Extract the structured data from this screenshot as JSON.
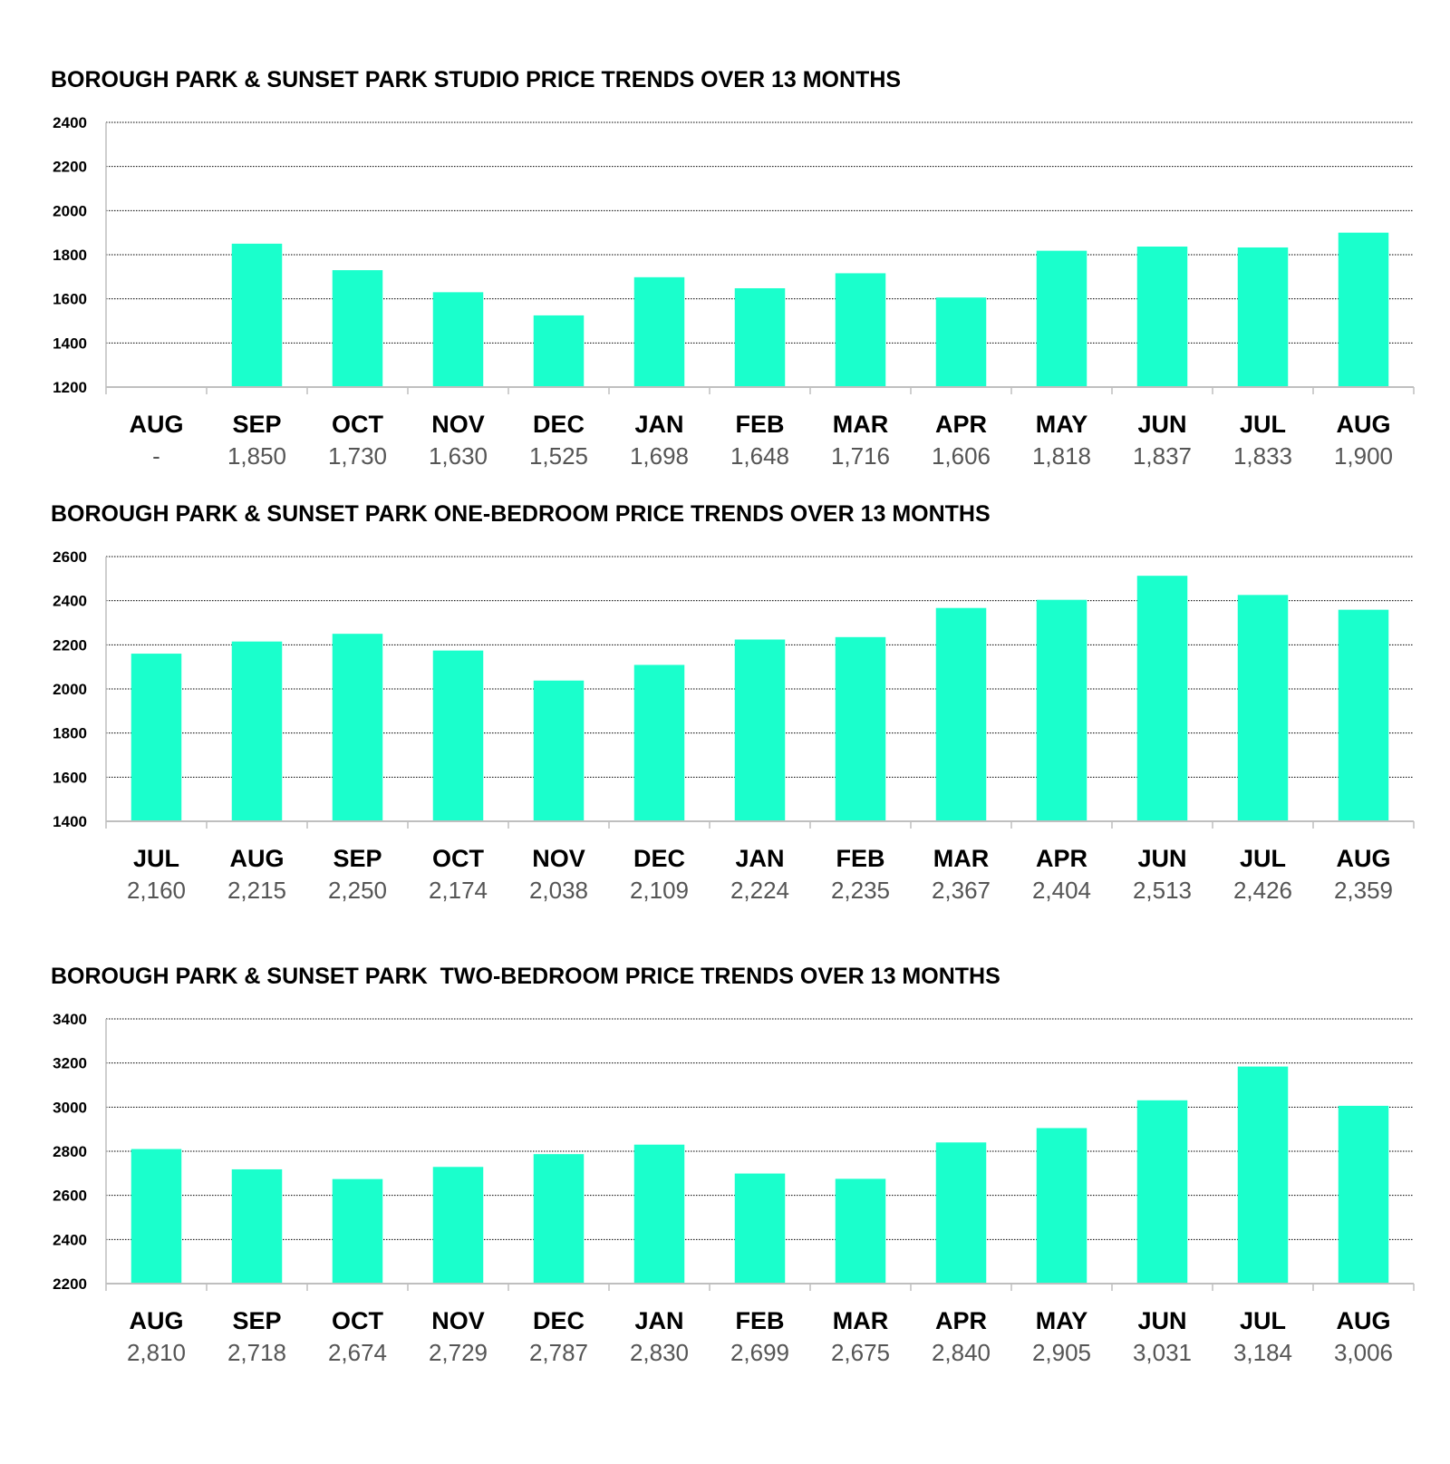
{
  "colors": {
    "bar": "#1affcc",
    "grid": "#000000",
    "axis": "#bfbfbf",
    "value_text": "#555555"
  },
  "chart_data": [
    {
      "type": "bar",
      "title": "BOROUGH PARK & SUNSET PARK STUDIO PRICE TRENDS OVER 13 MONTHS",
      "categories": [
        "AUG",
        "SEP",
        "OCT",
        "NOV",
        "DEC",
        "JAN",
        "FEB",
        "MAR",
        "APR",
        "MAY",
        "JUN",
        "JUL",
        "AUG"
      ],
      "values": [
        null,
        1850,
        1730,
        1630,
        1525,
        1698,
        1648,
        1716,
        1606,
        1818,
        1837,
        1833,
        1900
      ],
      "value_labels": [
        "-",
        "1,850",
        "1,730",
        "1,630",
        "1,525",
        "1,698",
        "1,648",
        "1,716",
        "1,606",
        "1,818",
        "1,837",
        "1,833",
        "1,900"
      ],
      "ylim": [
        1200,
        2400
      ],
      "yticks": [
        1200,
        1400,
        1600,
        1800,
        2000,
        2200,
        2400
      ],
      "grid": true
    },
    {
      "type": "bar",
      "title": "BOROUGH PARK & SUNSET PARK ONE-BEDROOM PRICE TRENDS OVER 13 MONTHS",
      "categories": [
        "JUL",
        "AUG",
        "SEP",
        "OCT",
        "NOV",
        "DEC",
        "JAN",
        "FEB",
        "MAR",
        "APR",
        "JUN",
        "JUL",
        "AUG"
      ],
      "values": [
        2160,
        2215,
        2250,
        2174,
        2038,
        2109,
        2224,
        2235,
        2367,
        2404,
        2513,
        2426,
        2359
      ],
      "value_labels": [
        "2,160",
        "2,215",
        "2,250",
        "2,174",
        "2,038",
        "2,109",
        "2,224",
        "2,235",
        "2,367",
        "2,404",
        "2,513",
        "2,426",
        "2,359"
      ],
      "ylim": [
        1400,
        2600
      ],
      "yticks": [
        1400,
        1600,
        1800,
        2000,
        2200,
        2400,
        2600
      ],
      "grid": true
    },
    {
      "type": "bar",
      "title": "BOROUGH PARK & SUNSET PARK  TWO-BEDROOM PRICE TRENDS OVER 13 MONTHS",
      "categories": [
        "AUG",
        "SEP",
        "OCT",
        "NOV",
        "DEC",
        "JAN",
        "FEB",
        "MAR",
        "APR",
        "MAY",
        "JUN",
        "JUL",
        "AUG"
      ],
      "values": [
        2810,
        2718,
        2674,
        2729,
        2787,
        2830,
        2699,
        2675,
        2840,
        2905,
        3031,
        3184,
        3006
      ],
      "value_labels": [
        "2,810",
        "2,718",
        "2,674",
        "2,729",
        "2,787",
        "2,830",
        "2,699",
        "2,675",
        "2,840",
        "2,905",
        "3,031",
        "3,184",
        "3,006"
      ],
      "ylim": [
        2200,
        3400
      ],
      "yticks": [
        2200,
        2400,
        2600,
        2800,
        3000,
        3200,
        3400
      ],
      "grid": true
    }
  ]
}
